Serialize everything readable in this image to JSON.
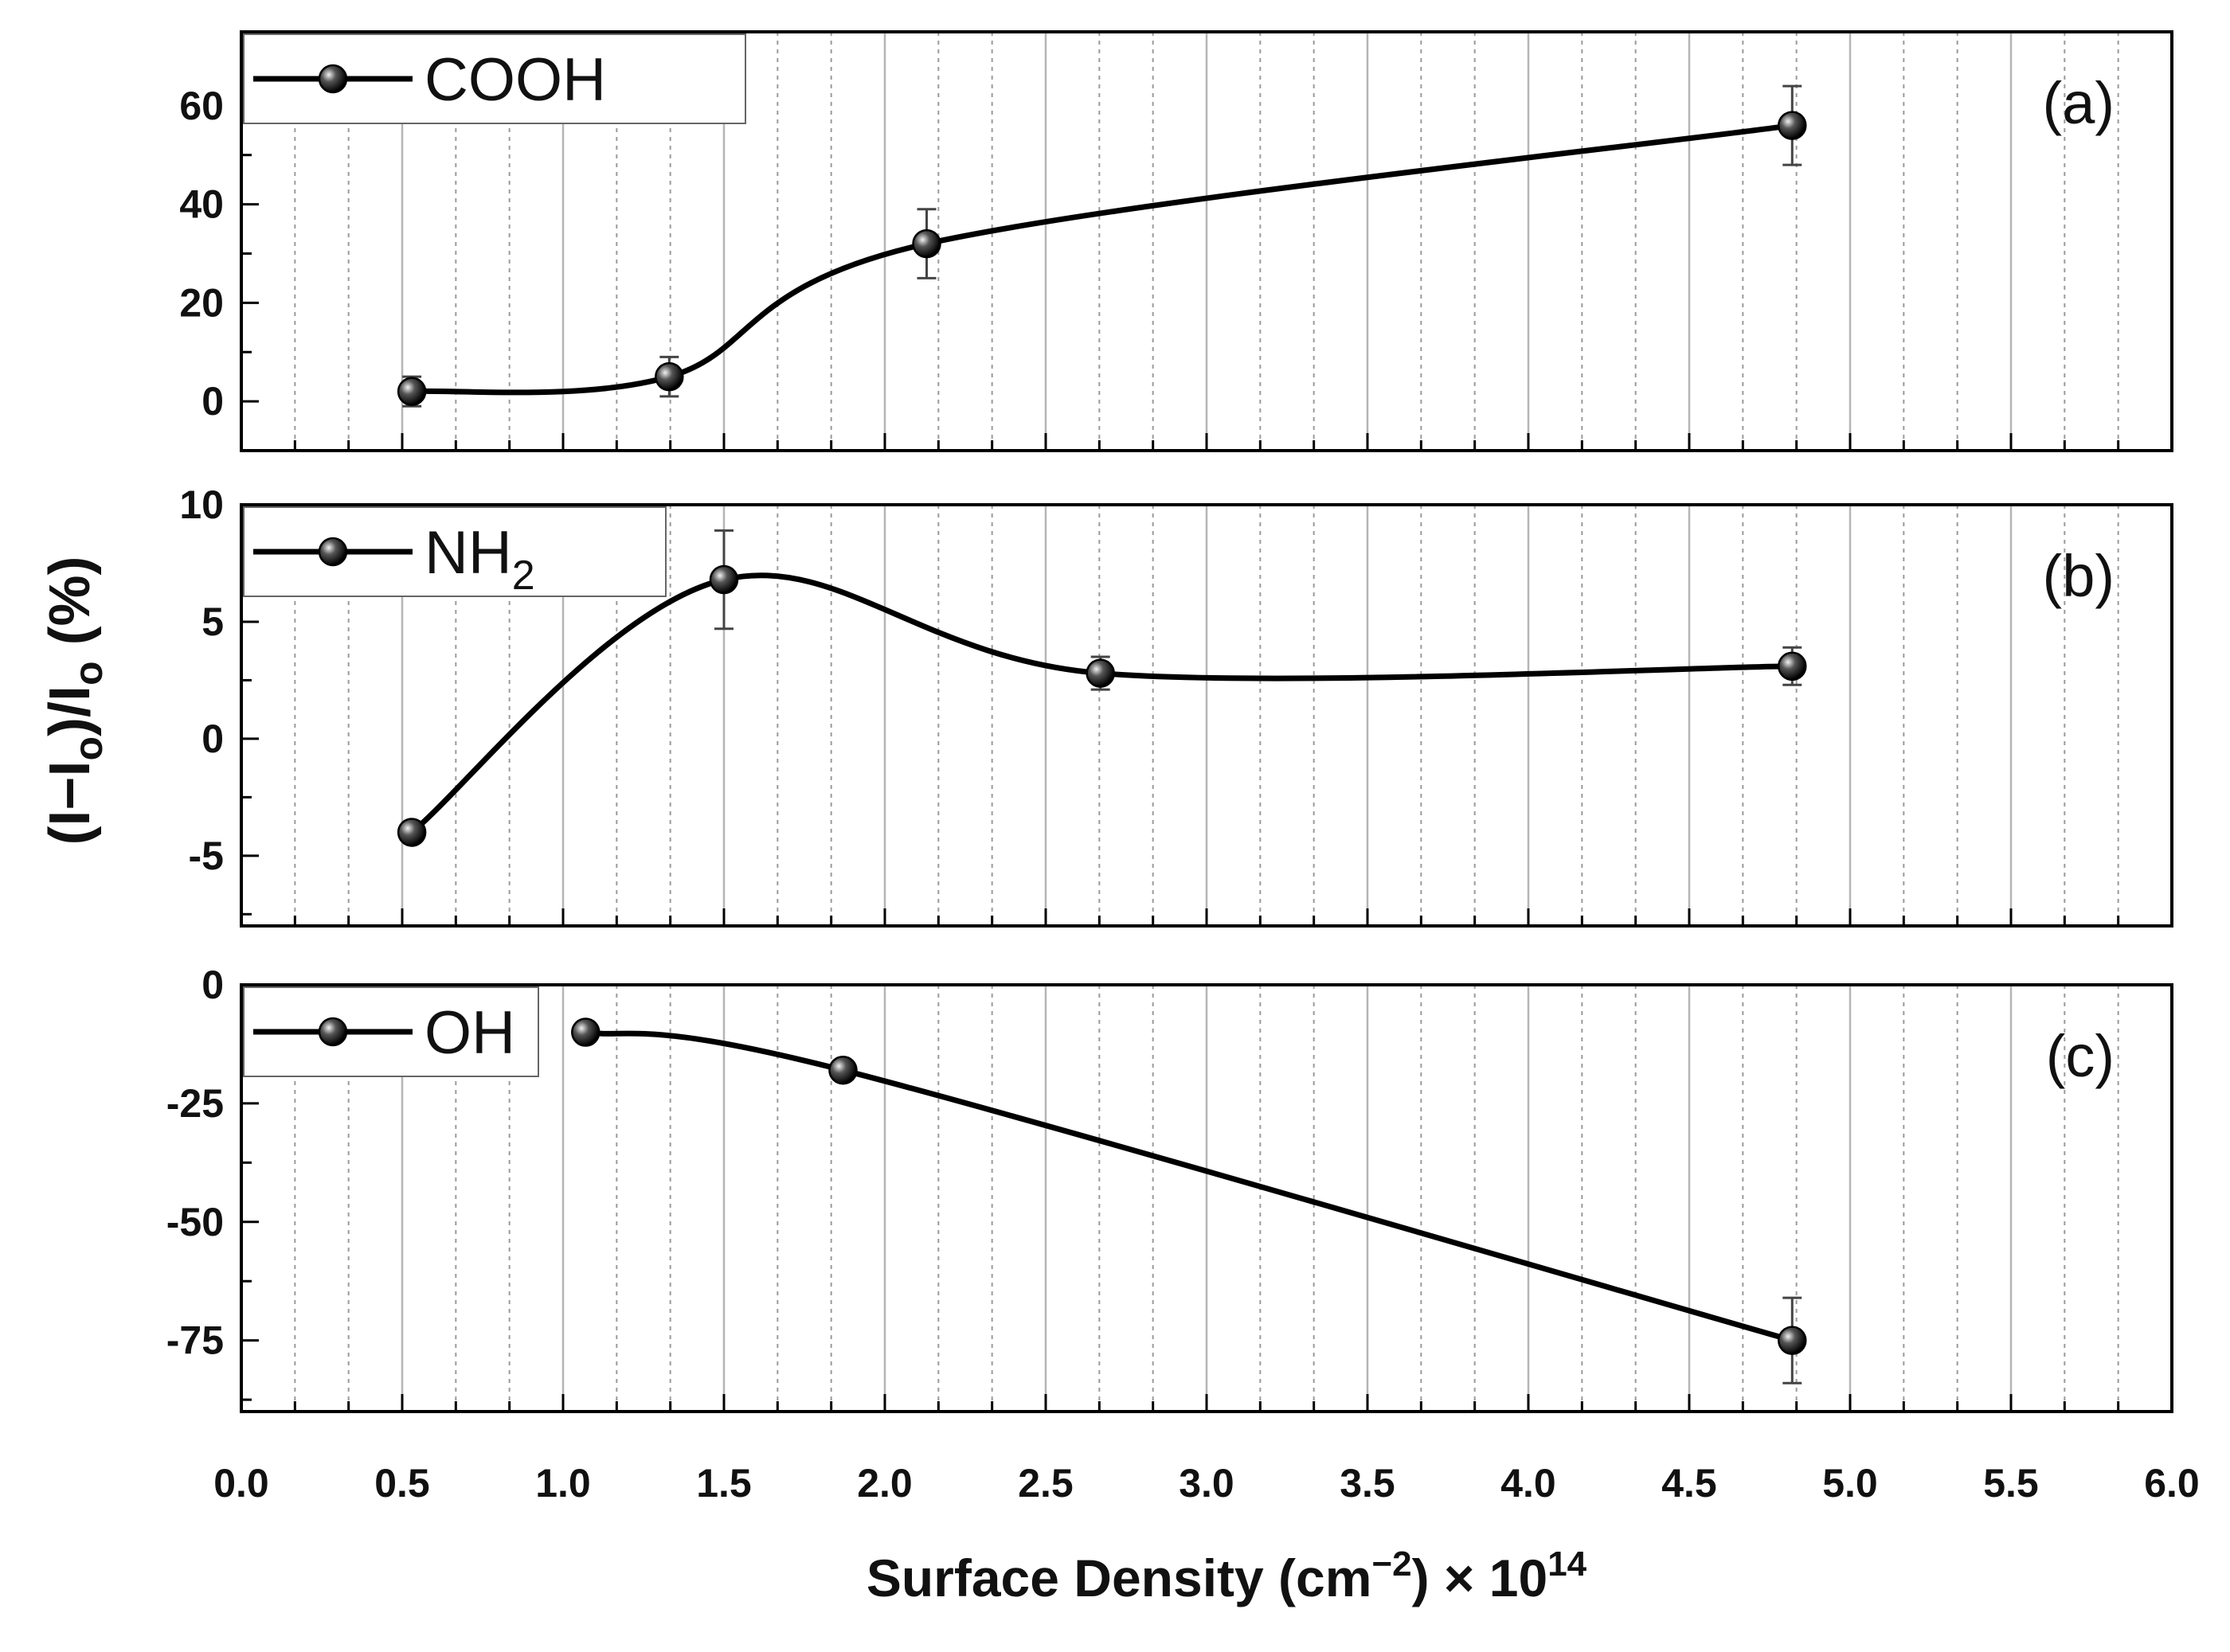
{
  "chart_data": {
    "type": "line",
    "shared_x": {
      "label_main": "Surface Density (cm",
      "label_exp": "−2",
      "label_tail": ") × 10",
      "label_exp2": "14",
      "xlim": [
        0.0,
        6.0
      ],
      "ticks": [
        "0.0",
        "0.5",
        "1.0",
        "1.5",
        "2.0",
        "2.5",
        "3.0",
        "3.5",
        "4.0",
        "4.5",
        "5.0",
        "5.5",
        "6.0"
      ]
    },
    "ylabel": {
      "open": "(I−I",
      "sub1": "o",
      "mid": ")/I",
      "sub2": "o",
      "close": " (%)"
    },
    "panels": [
      {
        "tag": "(a)",
        "series_name": "COOH",
        "name_sub": "",
        "ylim": [
          -10,
          75
        ],
        "yticks": [
          "0",
          "20",
          "40",
          "60"
        ],
        "x": [
          0.53,
          1.33,
          2.13,
          4.82
        ],
        "y": [
          2,
          5,
          32,
          56
        ],
        "err": [
          3,
          4,
          7,
          8
        ]
      },
      {
        "tag": "(b)",
        "series_name": "NH",
        "name_sub": "2",
        "ylim": [
          -8,
          10
        ],
        "yticks": [
          "-5",
          "0",
          "5",
          "10"
        ],
        "x": [
          0.53,
          1.5,
          2.67,
          4.82
        ],
        "y": [
          -4,
          6.8,
          2.8,
          3.1
        ],
        "err": [
          0.2,
          2.1,
          0.7,
          0.8
        ]
      },
      {
        "tag": "(c)",
        "series_name": "OH",
        "name_sub": "",
        "ylim": [
          -90,
          0
        ],
        "yticks": [
          "0",
          "-25",
          "-50",
          "-75"
        ],
        "x": [
          1.07,
          1.87,
          4.82
        ],
        "y": [
          -10,
          -18,
          -75
        ],
        "err": [
          1,
          1,
          9
        ]
      }
    ]
  }
}
